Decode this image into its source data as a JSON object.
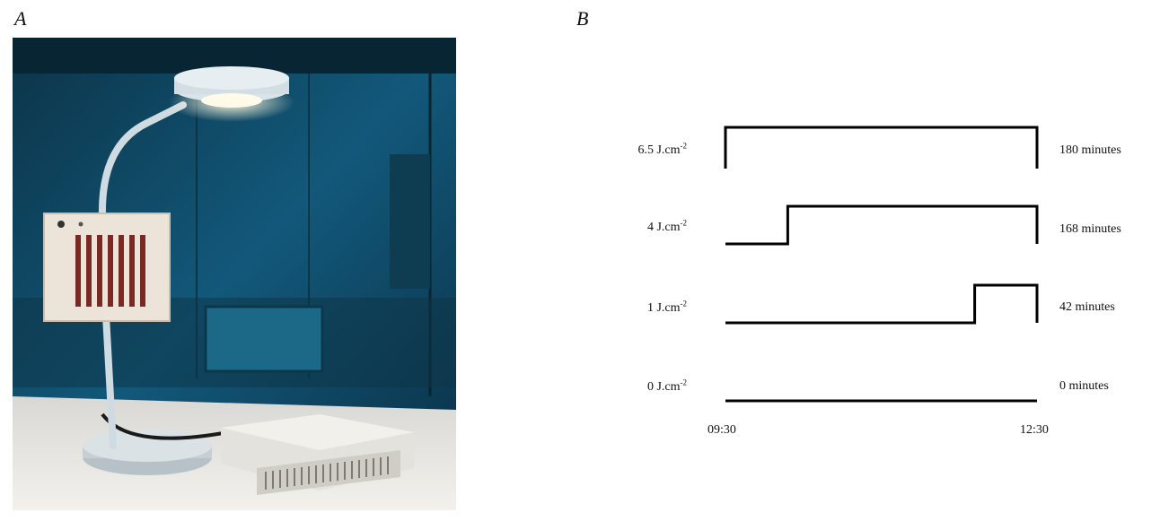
{
  "panels": {
    "a_letter": "A",
    "b_letter": "B"
  },
  "photo": {
    "icon": "desk-lamp-with-light-panel-photo",
    "colors": {
      "background": "#0f4a63",
      "desk": "#e9e7e2",
      "panel": "#e8ddd0",
      "leds": "#7a2a22"
    }
  },
  "diagram": {
    "rows": [
      {
        "dose_value": "6.5 J.cm",
        "dose_exp": "-2",
        "duration": "180 minutes",
        "on_fraction": 1.0
      },
      {
        "dose_value": "4 J.cm",
        "dose_exp": "-2",
        "duration": "168 minutes",
        "on_fraction": 0.8
      },
      {
        "dose_value": "1 J.cm",
        "dose_exp": "-2",
        "duration": "42 minutes",
        "on_fraction": 0.2
      },
      {
        "dose_value": "0 J.cm",
        "dose_exp": "-2",
        "duration": "0 minutes",
        "on_fraction": 0.0
      }
    ],
    "time_start": "09:30",
    "time_end": "12:30"
  }
}
